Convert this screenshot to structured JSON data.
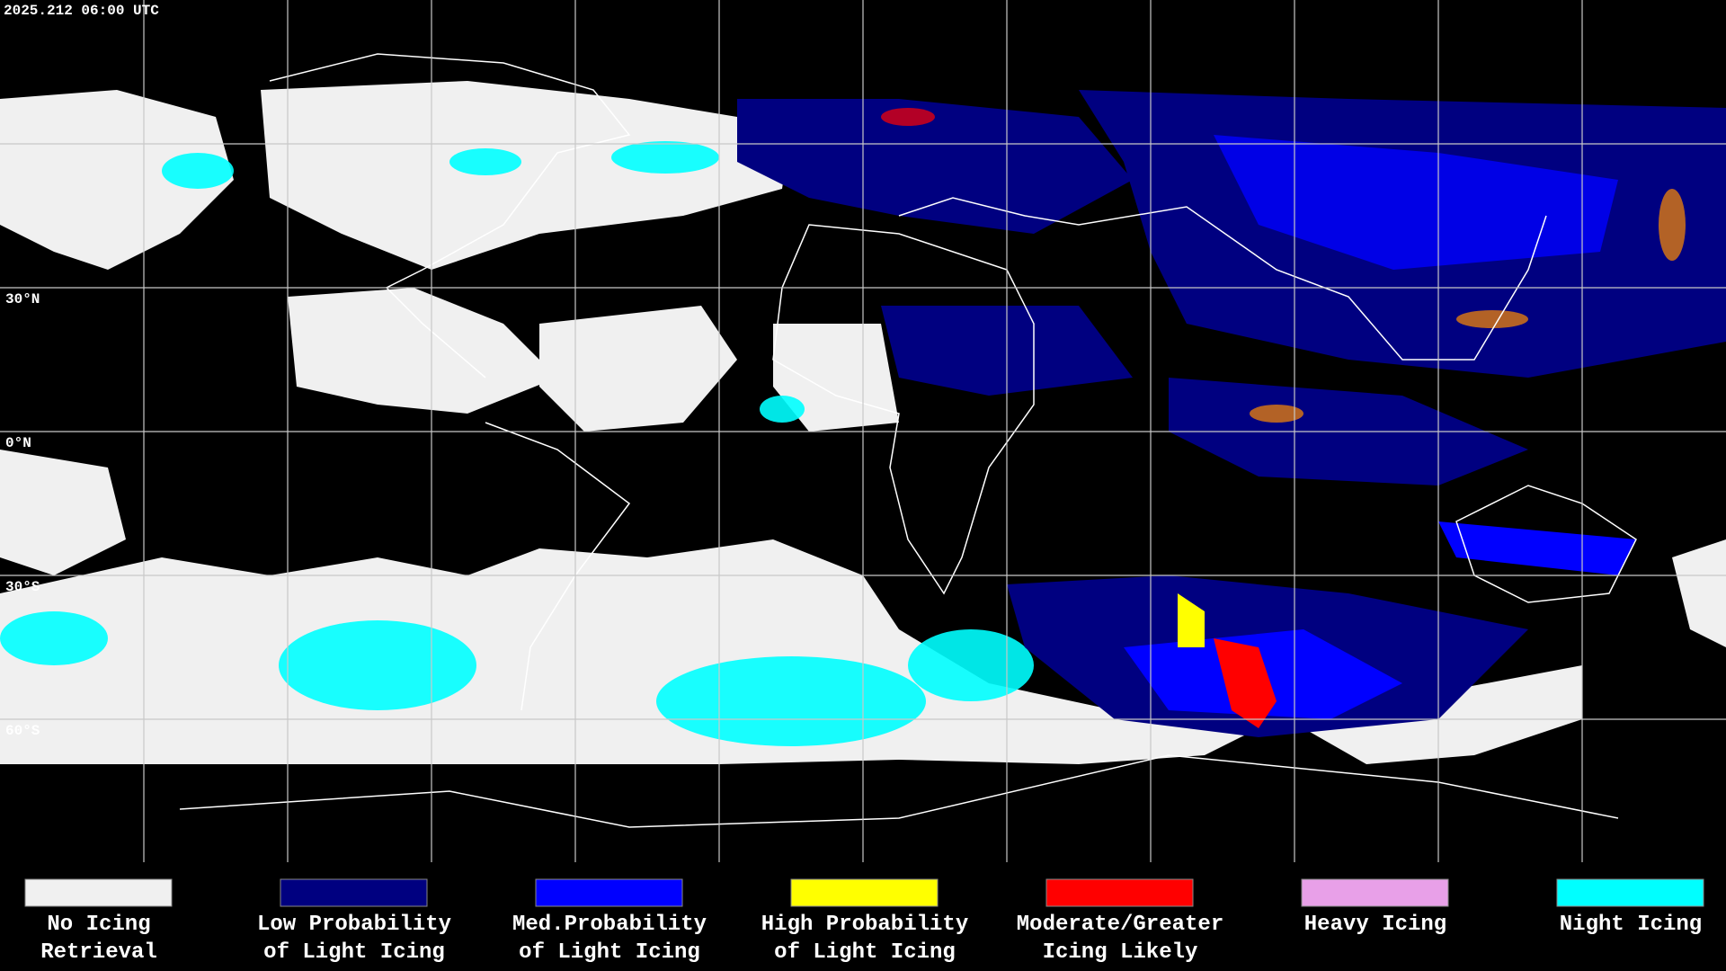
{
  "header": {
    "timestamp": "2025.212 06:00 UTC"
  },
  "map": {
    "latitude_labels": [
      "30°N",
      "0°N",
      "30°S",
      "60°S"
    ]
  },
  "legend": {
    "items": [
      {
        "lines": [
          "No Icing",
          "Retrieval"
        ],
        "color": "#f0f0f0"
      },
      {
        "lines": [
          "Low Probability",
          "of Light Icing"
        ],
        "color": "#000080"
      },
      {
        "lines": [
          "Med.Probability",
          "of Light Icing"
        ],
        "color": "#0000ff"
      },
      {
        "lines": [
          "High Probability",
          "of Light Icing"
        ],
        "color": "#ffff00"
      },
      {
        "lines": [
          "Moderate/Greater",
          "Icing Likely"
        ],
        "color": "#ff0000"
      },
      {
        "lines": [
          "Heavy Icing"
        ],
        "color": "#e8a0e8"
      },
      {
        "lines": [
          "Night Icing"
        ],
        "color": "#00ffff"
      }
    ]
  }
}
